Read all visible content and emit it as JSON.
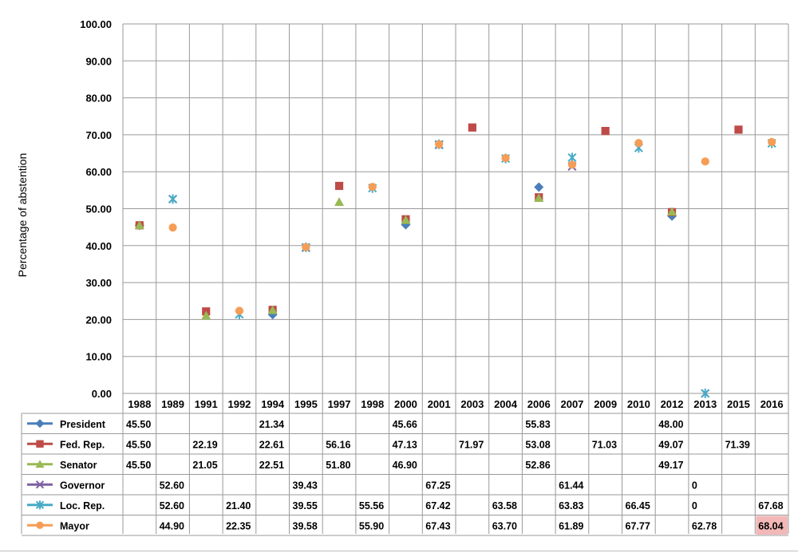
{
  "chart_data": {
    "type": "scatter",
    "ylabel": "Percentage of abstention",
    "ylim": [
      0,
      100
    ],
    "yticks": [
      "0.00",
      "10.00",
      "20.00",
      "30.00",
      "40.00",
      "50.00",
      "60.00",
      "70.00",
      "80.00",
      "90.00",
      "100.00"
    ],
    "categories": [
      "1988",
      "1989",
      "1991",
      "1992",
      "1994",
      "1995",
      "1997",
      "1998",
      "2000",
      "2001",
      "2003",
      "2004",
      "2006",
      "2007",
      "2009",
      "2010",
      "2012",
      "2013",
      "2015",
      "2016"
    ],
    "grid": true,
    "legend": "data-table-left",
    "series": [
      {
        "name": "President",
        "color": "#4a7ebb",
        "marker": "diamond",
        "values": [
          45.5,
          null,
          null,
          null,
          21.34,
          null,
          null,
          null,
          45.66,
          null,
          null,
          null,
          55.83,
          null,
          null,
          null,
          48.0,
          null,
          null,
          null
        ],
        "labels": [
          "45.50",
          "",
          "",
          "",
          "21.34",
          "",
          "",
          "",
          "45.66",
          "",
          "",
          "",
          "55.83",
          "",
          "",
          "",
          "48.00",
          "",
          "",
          ""
        ]
      },
      {
        "name": "Fed. Rep.",
        "color": "#be4b48",
        "marker": "square",
        "values": [
          45.5,
          null,
          22.19,
          null,
          22.61,
          null,
          56.16,
          null,
          47.13,
          null,
          71.97,
          null,
          53.08,
          null,
          71.03,
          null,
          49.07,
          null,
          71.39,
          null
        ],
        "labels": [
          "45.50",
          "",
          "22.19",
          "",
          "22.61",
          "",
          "56.16",
          "",
          "47.13",
          "",
          "71.97",
          "",
          "53.08",
          "",
          "71.03",
          "",
          "49.07",
          "",
          "71.39",
          ""
        ]
      },
      {
        "name": "Senator",
        "color": "#98b954",
        "marker": "triangle",
        "values": [
          45.5,
          null,
          21.05,
          null,
          22.51,
          null,
          51.8,
          null,
          46.9,
          null,
          null,
          null,
          52.86,
          null,
          null,
          null,
          49.17,
          null,
          null,
          null
        ],
        "labels": [
          "45.50",
          "",
          "21.05",
          "",
          "22.51",
          "",
          "51.80",
          "",
          "46.90",
          "",
          "",
          "",
          "52.86",
          "",
          "",
          "",
          "49.17",
          "",
          "",
          ""
        ]
      },
      {
        "name": "Governor",
        "color": "#7d60a0",
        "marker": "x",
        "values": [
          null,
          52.6,
          null,
          null,
          null,
          39.43,
          null,
          null,
          null,
          67.25,
          null,
          null,
          null,
          61.44,
          null,
          null,
          null,
          0,
          null,
          null
        ],
        "labels": [
          "",
          "52.60",
          "",
          "",
          "",
          "39.43",
          "",
          "",
          "",
          "67.25",
          "",
          "",
          "",
          "61.44",
          "",
          "",
          "",
          "0",
          "",
          ""
        ]
      },
      {
        "name": "Loc. Rep.",
        "color": "#46aac5",
        "marker": "star",
        "values": [
          null,
          52.6,
          null,
          21.4,
          null,
          39.55,
          null,
          55.56,
          null,
          67.42,
          null,
          63.58,
          null,
          63.83,
          null,
          66.45,
          null,
          0,
          null,
          67.68
        ],
        "labels": [
          "",
          "52.60",
          "",
          "21.40",
          "",
          "39.55",
          "",
          "55.56",
          "",
          "67.42",
          "",
          "63.58",
          "",
          "63.83",
          "",
          "66.45",
          "",
          "0",
          "",
          "67.68"
        ]
      },
      {
        "name": "Mayor",
        "color": "#f59d56",
        "marker": "circle",
        "values": [
          null,
          44.9,
          null,
          22.35,
          null,
          39.58,
          null,
          55.9,
          null,
          67.43,
          null,
          63.7,
          null,
          61.89,
          null,
          67.77,
          null,
          62.78,
          null,
          68.04
        ],
        "labels": [
          "",
          "44.90",
          "",
          "22.35",
          "",
          "39.58",
          "",
          "55.90",
          "",
          "67.43",
          "",
          "63.70",
          "",
          "61.89",
          "",
          "67.77",
          "",
          "62.78",
          "",
          "68.04"
        ]
      }
    ],
    "highlight_cell": {
      "series": "Mayor",
      "category": "2016",
      "color": "#f2b8b8"
    }
  }
}
